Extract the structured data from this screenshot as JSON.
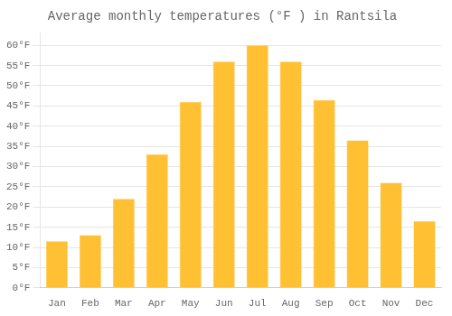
{
  "chart_data": {
    "type": "bar",
    "title": "Average monthly temperatures (°F ) in Rantsila",
    "categories": [
      "Jan",
      "Feb",
      "Mar",
      "Apr",
      "May",
      "Jun",
      "Jul",
      "Aug",
      "Sep",
      "Oct",
      "Nov",
      "Dec"
    ],
    "values": [
      11.5,
      13.0,
      22.0,
      33.0,
      46.0,
      56.0,
      60.0,
      56.0,
      46.5,
      36.5,
      26.0,
      16.5
    ],
    "color": "#FFC133",
    "ylim": [
      0,
      63
    ],
    "yticks": [
      {
        "value": 0,
        "label": "0°F"
      },
      {
        "value": 5,
        "label": "5°F"
      },
      {
        "value": 10,
        "label": "10°F"
      },
      {
        "value": 15,
        "label": "15°F"
      },
      {
        "value": 20,
        "label": "20°F"
      },
      {
        "value": 25,
        "label": "25°F"
      },
      {
        "value": 30,
        "label": "30°F"
      },
      {
        "value": 35,
        "label": "35°F"
      },
      {
        "value": 40,
        "label": "40°F"
      },
      {
        "value": 45,
        "label": "45°F"
      },
      {
        "value": 50,
        "label": "50°F"
      },
      {
        "value": 55,
        "label": "55°F"
      },
      {
        "value": 60,
        "label": "60°F"
      }
    ],
    "grid": true
  }
}
